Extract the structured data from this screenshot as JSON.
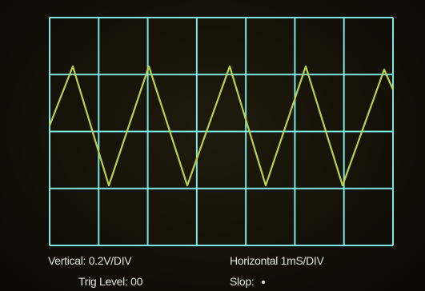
{
  "scope": {
    "grid": {
      "columns": 7,
      "rows": 4,
      "color": "#7ae6e0"
    },
    "trace": {
      "color": "#b9d24a",
      "waveform": "triangle",
      "cycles_visible": 4.4
    }
  },
  "readouts": {
    "vertical": "Vertical: 0.2V/DIV",
    "horizontal": "Horizontal   1mS/DIV",
    "trig_level": "Trig Level:  00",
    "slope": "Slop:"
  }
}
